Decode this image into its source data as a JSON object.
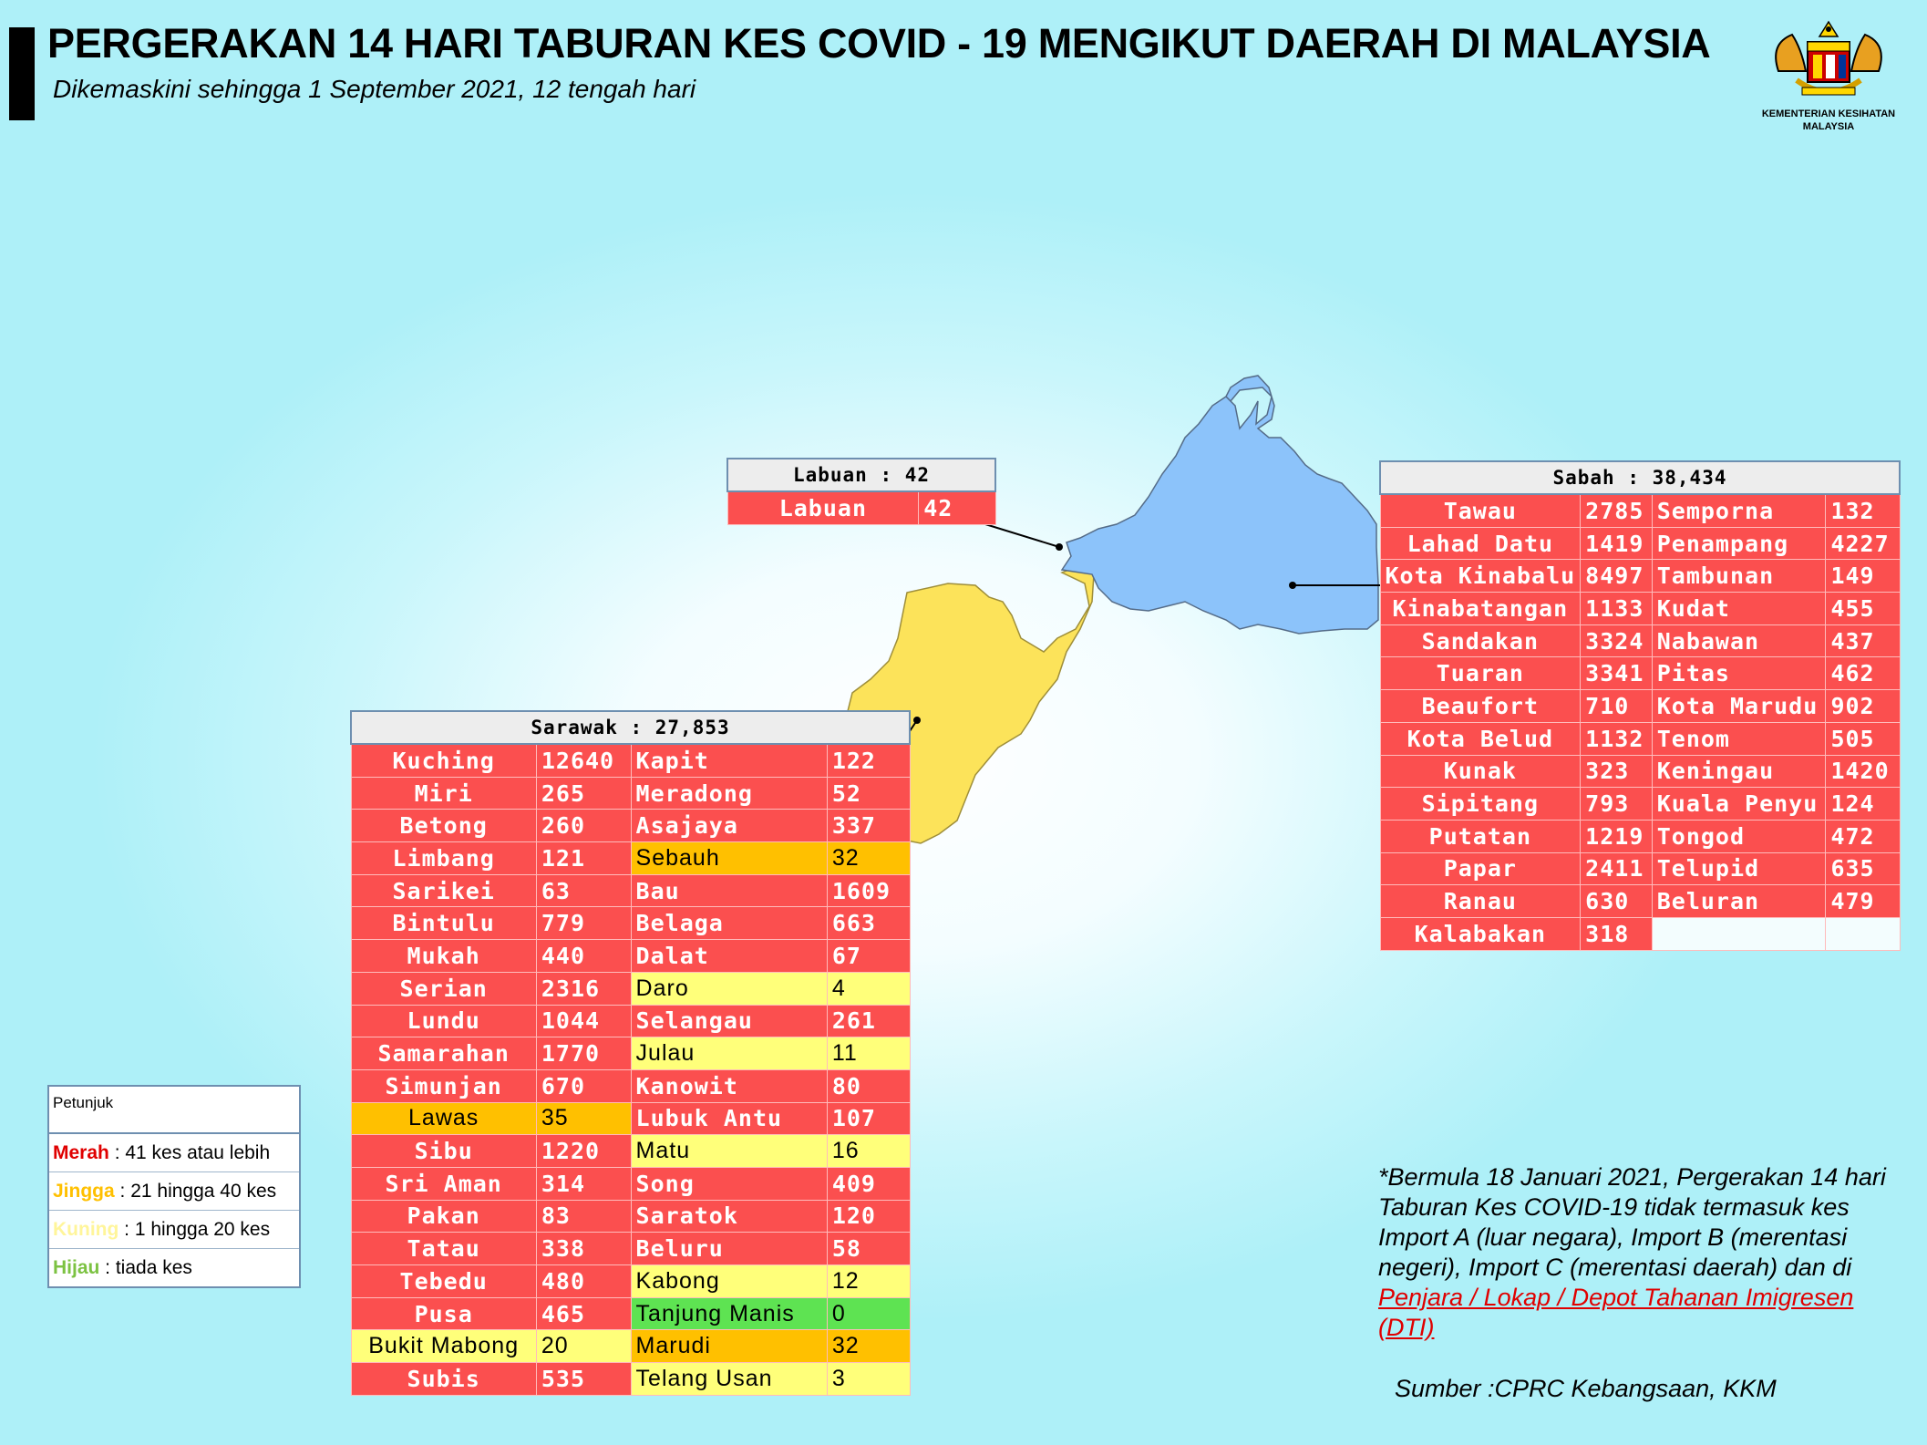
{
  "header": {
    "title": "PERGERAKAN 14 HARI TABURAN KES COVID - 19 MENGIKUT DAERAH DI MALAYSIA",
    "subtitle": "Dikemaskini sehingga 1 September 2021, 12 tengah hari",
    "logo_text_1": "KEMENTERIAN KESIHATAN",
    "logo_text_2": "MALAYSIA"
  },
  "colors": {
    "merah": "#fb4f4f",
    "jingga": "#ffc000",
    "kuning": "#ffff7a",
    "hijau": "#5ee352",
    "sabah_map": "#8cc3fa",
    "sarawak_map": "#fce35a"
  },
  "labuan": {
    "title": "Labuan : 42",
    "rows": [
      {
        "name": "Labuan",
        "value": "42",
        "level": "red"
      }
    ]
  },
  "sabah": {
    "title": "Sabah : 38,434",
    "rows": [
      {
        "n1": "Tawau",
        "v1": "2785",
        "l1": "red",
        "n2": "Semporna",
        "v2": "132",
        "l2": "red"
      },
      {
        "n1": "Lahad Datu",
        "v1": "1419",
        "l1": "red",
        "n2": "Penampang",
        "v2": "4227",
        "l2": "red"
      },
      {
        "n1": "Kota Kinabalu",
        "v1": "8497",
        "l1": "red",
        "n2": "Tambunan",
        "v2": "149",
        "l2": "red"
      },
      {
        "n1": "Kinabatangan",
        "v1": "1133",
        "l1": "red",
        "n2": "Kudat",
        "v2": "455",
        "l2": "red"
      },
      {
        "n1": "Sandakan",
        "v1": "3324",
        "l1": "red",
        "n2": "Nabawan",
        "v2": "437",
        "l2": "red"
      },
      {
        "n1": "Tuaran",
        "v1": "3341",
        "l1": "red",
        "n2": "Pitas",
        "v2": "462",
        "l2": "red"
      },
      {
        "n1": "Beaufort",
        "v1": "710",
        "l1": "red",
        "n2": "Kota Marudu",
        "v2": "902",
        "l2": "red"
      },
      {
        "n1": "Kota Belud",
        "v1": "1132",
        "l1": "red",
        "n2": "Tenom",
        "v2": "505",
        "l2": "red"
      },
      {
        "n1": "Kunak",
        "v1": "323",
        "l1": "red",
        "n2": "Keningau",
        "v2": "1420",
        "l2": "red"
      },
      {
        "n1": "Sipitang",
        "v1": "793",
        "l1": "red",
        "n2": "Kuala Penyu",
        "v2": "124",
        "l2": "red"
      },
      {
        "n1": "Putatan",
        "v1": "1219",
        "l1": "red",
        "n2": "Tongod",
        "v2": "472",
        "l2": "red"
      },
      {
        "n1": "Papar",
        "v1": "2411",
        "l1": "red",
        "n2": "Telupid",
        "v2": "635",
        "l2": "red"
      },
      {
        "n1": "Ranau",
        "v1": "630",
        "l1": "red",
        "n2": "Beluran",
        "v2": "479",
        "l2": "red"
      },
      {
        "n1": "Kalabakan",
        "v1": "318",
        "l1": "red",
        "n2": "",
        "v2": "",
        "l2": "blank"
      }
    ]
  },
  "sarawak": {
    "title": "Sarawak : 27,853",
    "rows": [
      {
        "n1": "Kuching",
        "v1": "12640",
        "l1": "red",
        "n2": "Kapit",
        "v2": "122",
        "l2": "red"
      },
      {
        "n1": "Miri",
        "v1": "265",
        "l1": "red",
        "n2": "Meradong",
        "v2": "52",
        "l2": "red"
      },
      {
        "n1": "Betong",
        "v1": "260",
        "l1": "red",
        "n2": "Asajaya",
        "v2": "337",
        "l2": "red"
      },
      {
        "n1": "Limbang",
        "v1": "121",
        "l1": "red",
        "n2": "Sebauh",
        "v2": "32",
        "l2": "orange"
      },
      {
        "n1": "Sarikei",
        "v1": "63",
        "l1": "red",
        "n2": "Bau",
        "v2": "1609",
        "l2": "red"
      },
      {
        "n1": "Bintulu",
        "v1": "779",
        "l1": "red",
        "n2": "Belaga",
        "v2": "663",
        "l2": "red"
      },
      {
        "n1": "Mukah",
        "v1": "440",
        "l1": "red",
        "n2": "Dalat",
        "v2": "67",
        "l2": "red"
      },
      {
        "n1": "Serian",
        "v1": "2316",
        "l1": "red",
        "n2": "Daro",
        "v2": "4",
        "l2": "yellow"
      },
      {
        "n1": "Lundu",
        "v1": "1044",
        "l1": "red",
        "n2": "Selangau",
        "v2": "261",
        "l2": "red"
      },
      {
        "n1": "Samarahan",
        "v1": "1770",
        "l1": "red",
        "n2": "Julau",
        "v2": "11",
        "l2": "yellow"
      },
      {
        "n1": "Simunjan",
        "v1": "670",
        "l1": "red",
        "n2": "Kanowit",
        "v2": "80",
        "l2": "red"
      },
      {
        "n1": "Lawas",
        "v1": "35",
        "l1": "orange",
        "n2": "Lubuk Antu",
        "v2": "107",
        "l2": "red"
      },
      {
        "n1": "Sibu",
        "v1": "1220",
        "l1": "red",
        "n2": "Matu",
        "v2": "16",
        "l2": "yellow"
      },
      {
        "n1": "Sri Aman",
        "v1": "314",
        "l1": "red",
        "n2": "Song",
        "v2": "409",
        "l2": "red"
      },
      {
        "n1": "Pakan",
        "v1": "83",
        "l1": "red",
        "n2": "Saratok",
        "v2": "120",
        "l2": "red"
      },
      {
        "n1": "Tatau",
        "v1": "338",
        "l1": "red",
        "n2": "Beluru",
        "v2": "58",
        "l2": "red"
      },
      {
        "n1": "Tebedu",
        "v1": "480",
        "l1": "red",
        "n2": "Kabong",
        "v2": "12",
        "l2": "yellow"
      },
      {
        "n1": "Pusa",
        "v1": "465",
        "l1": "red",
        "n2": "Tanjung Manis",
        "v2": "0",
        "l2": "green"
      },
      {
        "n1": "Bukit Mabong",
        "v1": "20",
        "l1": "yellow",
        "n2": "Marudi",
        "v2": "32",
        "l2": "orange"
      },
      {
        "n1": "Subis",
        "v1": "535",
        "l1": "red",
        "n2": "Telang Usan",
        "v2": "3",
        "l2": "yellow"
      }
    ]
  },
  "legend": {
    "title": "Petunjuk",
    "items": [
      {
        "key": "Merah",
        "text": " : 41 kes atau lebih",
        "color": "#e00000"
      },
      {
        "key": "Jingga",
        "text": " : 21 hingga 40 kes",
        "color": "#ffc000"
      },
      {
        "key": "Kuning",
        "text": " : 1 hingga 20 kes",
        "color": "#fff59a"
      },
      {
        "key": "Hijau",
        "text": " : tiada kes",
        "color": "#7cc242"
      }
    ]
  },
  "note": {
    "text": "*Bermula 18 Januari 2021, Pergerakan 14 hari Taburan Kes COVID-19 tidak termasuk kes Import A (luar negara), Import B (merentasi negeri), Import C (merentasi daerah) dan di ",
    "link": "Penjara / Lokap / Depot Tahanan Imigresen (DTI)"
  },
  "source": "Sumber :CPRC Kebangsaan,  KKM"
}
